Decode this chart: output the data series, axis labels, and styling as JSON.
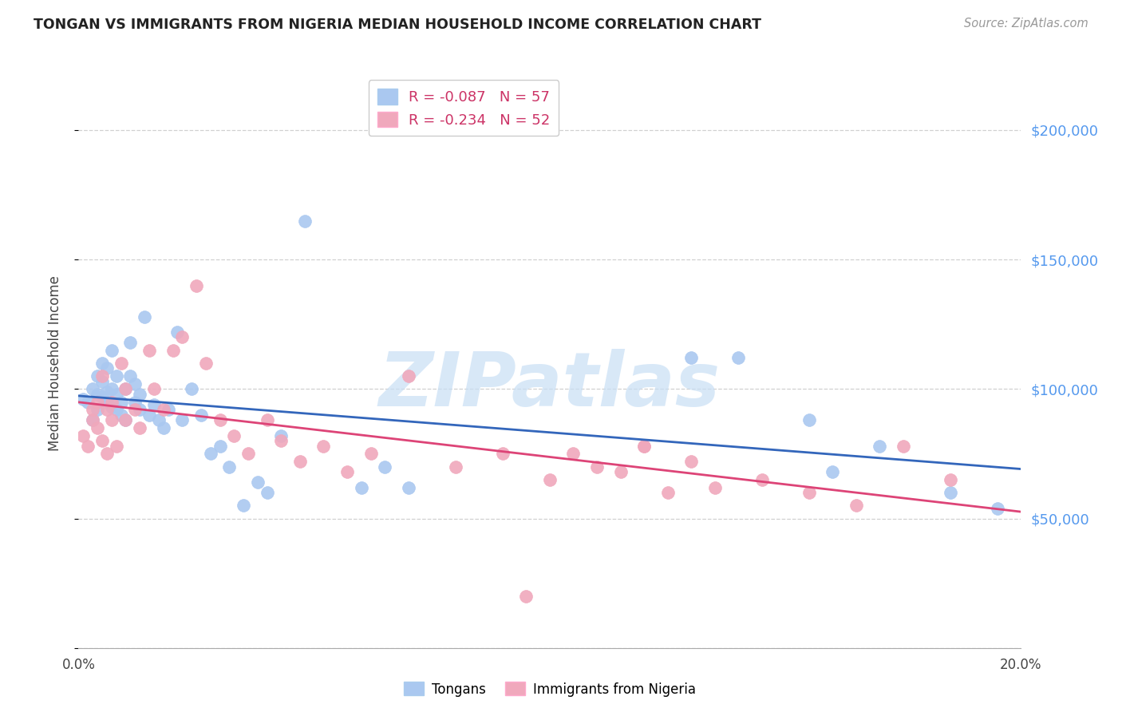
{
  "title": "TONGAN VS IMMIGRANTS FROM NIGERIA MEDIAN HOUSEHOLD INCOME CORRELATION CHART",
  "source": "Source: ZipAtlas.com",
  "ylabel": "Median Household Income",
  "xlim": [
    0.0,
    0.2
  ],
  "ylim": [
    0,
    220000
  ],
  "yticks": [
    0,
    50000,
    100000,
    150000,
    200000
  ],
  "ytick_labels": [
    "",
    "$50,000",
    "$100,000",
    "$150,000",
    "$200,000"
  ],
  "xticks": [
    0.0,
    0.05,
    0.1,
    0.15,
    0.2
  ],
  "xtick_labels": [
    "0.0%",
    "",
    "",
    "",
    "20.0%"
  ],
  "background_color": "#ffffff",
  "grid_color": "#d0d0d0",
  "title_color": "#222222",
  "right_ytick_color": "#5599ee",
  "legend_r1": "R = -0.087   N = 57",
  "legend_r2": "R = -0.234   N = 52",
  "legend_r_color": "#cc3366",
  "tongans_color": "#aac8f0",
  "nigeria_color": "#f0a8bc",
  "tongans_line_color": "#3366bb",
  "nigeria_line_color": "#dd4477",
  "watermark_color": "#c8dff5",
  "tongans_x": [
    0.001,
    0.002,
    0.003,
    0.003,
    0.004,
    0.004,
    0.004,
    0.005,
    0.005,
    0.005,
    0.006,
    0.006,
    0.006,
    0.007,
    0.007,
    0.007,
    0.008,
    0.008,
    0.008,
    0.009,
    0.009,
    0.01,
    0.01,
    0.011,
    0.011,
    0.012,
    0.012,
    0.013,
    0.013,
    0.014,
    0.015,
    0.016,
    0.017,
    0.018,
    0.019,
    0.021,
    0.022,
    0.024,
    0.026,
    0.028,
    0.03,
    0.032,
    0.035,
    0.038,
    0.04,
    0.043,
    0.048,
    0.06,
    0.065,
    0.07,
    0.13,
    0.14,
    0.155,
    0.16,
    0.17,
    0.185,
    0.195
  ],
  "tongans_y": [
    96000,
    95000,
    88000,
    100000,
    92000,
    98000,
    105000,
    97000,
    103000,
    110000,
    95000,
    99000,
    108000,
    93000,
    100000,
    115000,
    92000,
    98000,
    105000,
    90000,
    95000,
    100000,
    88000,
    105000,
    118000,
    95000,
    102000,
    92000,
    98000,
    128000,
    90000,
    94000,
    88000,
    85000,
    92000,
    122000,
    88000,
    100000,
    90000,
    75000,
    78000,
    70000,
    55000,
    64000,
    60000,
    82000,
    165000,
    62000,
    70000,
    62000,
    112000,
    112000,
    88000,
    68000,
    78000,
    60000,
    54000
  ],
  "nigeria_x": [
    0.001,
    0.002,
    0.003,
    0.003,
    0.004,
    0.004,
    0.005,
    0.005,
    0.006,
    0.006,
    0.007,
    0.007,
    0.008,
    0.009,
    0.01,
    0.01,
    0.012,
    0.013,
    0.015,
    0.016,
    0.018,
    0.02,
    0.022,
    0.025,
    0.027,
    0.03,
    0.033,
    0.036,
    0.04,
    0.043,
    0.047,
    0.052,
    0.057,
    0.062,
    0.07,
    0.08,
    0.09,
    0.1,
    0.11,
    0.12,
    0.135,
    0.145,
    0.155,
    0.165,
    0.175,
    0.185,
    0.095,
    0.105,
    0.115,
    0.125,
    0.13,
    0.12
  ],
  "nigeria_y": [
    82000,
    78000,
    88000,
    92000,
    85000,
    95000,
    80000,
    105000,
    92000,
    75000,
    88000,
    95000,
    78000,
    110000,
    88000,
    100000,
    92000,
    85000,
    115000,
    100000,
    92000,
    115000,
    120000,
    140000,
    110000,
    88000,
    82000,
    75000,
    88000,
    80000,
    72000,
    78000,
    68000,
    75000,
    105000,
    70000,
    75000,
    65000,
    70000,
    78000,
    62000,
    65000,
    60000,
    55000,
    78000,
    65000,
    20000,
    75000,
    68000,
    60000,
    72000,
    78000
  ]
}
